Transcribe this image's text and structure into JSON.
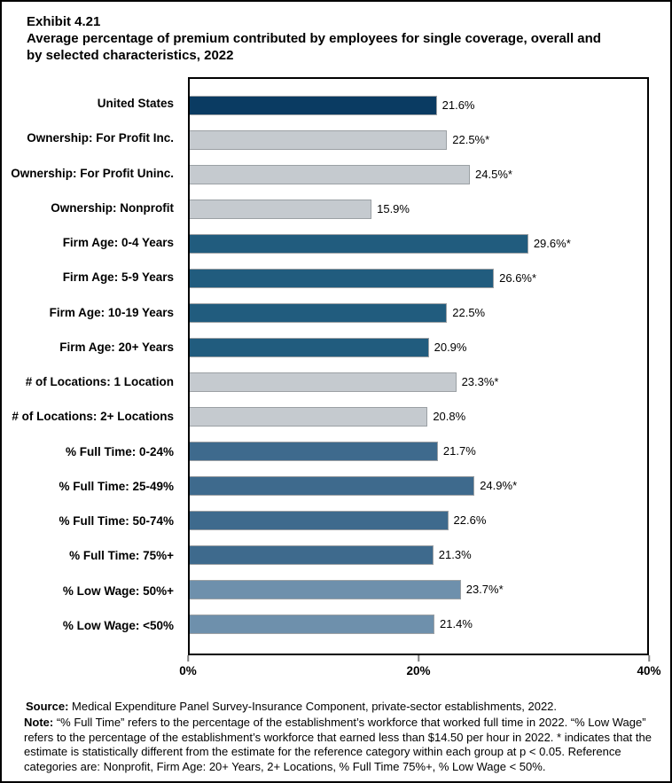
{
  "title": {
    "exhibit": "Exhibit 4.21",
    "text": "Average percentage of premium contributed by employees for single coverage, overall and by selected characteristics, 2022"
  },
  "chart_data": {
    "type": "bar",
    "orientation": "horizontal",
    "title": "Average percentage of premium contributed by employees for single coverage, overall and by selected characteristics, 2022",
    "xlabel": "",
    "ylabel": "",
    "xlim": [
      0,
      40
    ],
    "x_ticks": [
      "0%",
      "20%",
      "40%"
    ],
    "grid": false,
    "legend": false,
    "rows": [
      {
        "label": "United States",
        "value": 21.6,
        "display": "21.6%",
        "group": "us"
      },
      {
        "label": "Ownership: For Profit Inc.",
        "value": 22.5,
        "display": "22.5%*",
        "group": "ownership"
      },
      {
        "label": "Ownership: For Profit Uninc.",
        "value": 24.5,
        "display": "24.5%*",
        "group": "ownership"
      },
      {
        "label": "Ownership: Nonprofit",
        "value": 15.9,
        "display": "15.9%",
        "group": "ownership"
      },
      {
        "label": "Firm Age: 0-4 Years",
        "value": 29.6,
        "display": "29.6%*",
        "group": "firm_age"
      },
      {
        "label": "Firm Age: 5-9 Years",
        "value": 26.6,
        "display": "26.6%*",
        "group": "firm_age"
      },
      {
        "label": "Firm Age: 10-19 Years",
        "value": 22.5,
        "display": "22.5%",
        "group": "firm_age"
      },
      {
        "label": "Firm Age: 20+ Years",
        "value": 20.9,
        "display": "20.9%",
        "group": "firm_age"
      },
      {
        "label": "# of Locations: 1 Location",
        "value": 23.3,
        "display": "23.3%*",
        "group": "locations"
      },
      {
        "label": "# of Locations: 2+ Locations",
        "value": 20.8,
        "display": "20.8%",
        "group": "locations"
      },
      {
        "label": "% Full Time: 0-24%",
        "value": 21.7,
        "display": "21.7%",
        "group": "full_time"
      },
      {
        "label": "% Full Time: 25-49%",
        "value": 24.9,
        "display": "24.9%*",
        "group": "full_time"
      },
      {
        "label": "% Full Time: 50-74%",
        "value": 22.6,
        "display": "22.6%",
        "group": "full_time"
      },
      {
        "label": "% Full Time: 75%+",
        "value": 21.3,
        "display": "21.3%",
        "group": "full_time"
      },
      {
        "label": "% Low Wage: 50%+",
        "value": 23.7,
        "display": "23.7%*",
        "group": "low_wage"
      },
      {
        "label": "% Low Wage: <50%",
        "value": 21.4,
        "display": "21.4%",
        "group": "low_wage"
      }
    ],
    "colors": {
      "us": "#0A3B62",
      "ownership": "#C5CACF",
      "firm_age": "#215C7E",
      "locations": "#C5CACF",
      "full_time": "#3E6A8D",
      "low_wage": "#6E90AC"
    },
    "bar_border_color": "#9BA0A4",
    "tick_color": "#808080"
  },
  "footer": {
    "source_label": "Source:",
    "source_text": " Medical Expenditure Panel Survey-Insurance Component, private-sector establishments, 2022.",
    "note_label": "Note:",
    "note_text": " “% Full Time” refers to the percentage of the establishment’s workforce that worked full time in 2022. “% Low Wage” refers to the percentage of the establishment’s workforce that earned less than $14.50 per hour in 2022. * indicates that the estimate is statistically different from the estimate for the reference category within each group at p < 0.05.  Reference categories are: Nonprofit, Firm Age: 20+ Years, 2+ Locations, % Full Time 75%+, % Low Wage < 50%."
  }
}
